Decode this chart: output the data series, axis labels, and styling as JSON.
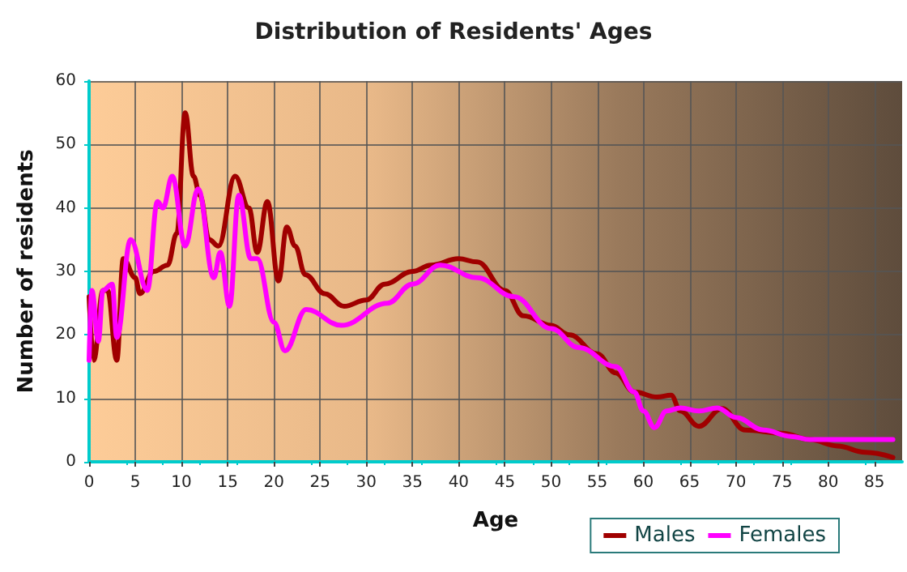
{
  "chart_data": {
    "type": "line",
    "title": "Distribution of Residents' Ages",
    "xlabel": "Age",
    "ylabel": "Number of residents",
    "xlim": [
      0,
      88
    ],
    "xticks": [
      0,
      5,
      10,
      15,
      20,
      25,
      30,
      35,
      40,
      45,
      50,
      55,
      60,
      65,
      70,
      75,
      80,
      85
    ],
    "ylim": [
      0,
      60
    ],
    "yticks": [
      0,
      10,
      20,
      30,
      40,
      50,
      60
    ],
    "grid": true,
    "legend": "bottom right",
    "marker": "none",
    "line_style": "solid",
    "series": [
      {
        "name": "Males",
        "color": "#a00000",
        "x": [
          0,
          0.5,
          1.5,
          2,
          3,
          3.7,
          5,
          5.5,
          7,
          8.5,
          9.5,
          10.4,
          11.3,
          12,
          13,
          14,
          15.8,
          17.3,
          18.2,
          19.3,
          20.5,
          21.4,
          22.3,
          23.4,
          25.5,
          27.6,
          30,
          32,
          35,
          37,
          40,
          42,
          45,
          47,
          50,
          52,
          55,
          57,
          59,
          61.5,
          63,
          64,
          66,
          68.5,
          71,
          75,
          78,
          81,
          84,
          87
        ],
        "values": [
          26,
          16,
          27,
          27,
          16,
          32,
          29,
          26.5,
          30,
          31,
          36,
          55,
          45,
          42,
          35,
          34,
          45,
          40,
          33,
          41,
          28.5,
          37,
          34,
          29.5,
          26.5,
          24.5,
          25.5,
          28,
          30,
          31,
          32,
          31.5,
          27,
          23,
          21.5,
          20,
          17,
          14,
          11,
          10.2,
          10.5,
          8,
          5.6,
          8.4,
          5,
          4.5,
          3.5,
          2.5,
          1.5,
          0.7
        ]
      },
      {
        "name": "Females",
        "color": "#ff00ff",
        "x": [
          0,
          0.3,
          1,
          1.5,
          2.5,
          3,
          4.5,
          6.3,
          7.4,
          8,
          9,
          10.4,
          11.8,
          13.5,
          14.2,
          15.2,
          16.2,
          17.5,
          18.2,
          20,
          21.2,
          23.5,
          27.3,
          32.3,
          35,
          38,
          42,
          46,
          50,
          53,
          57,
          59,
          60,
          61.2,
          62.5,
          64,
          66,
          68,
          70,
          73,
          76,
          78,
          87
        ],
        "values": [
          16,
          27,
          19,
          27,
          28,
          19.6,
          35,
          27,
          41,
          40,
          45,
          34,
          43,
          29,
          33,
          24.5,
          42,
          32,
          32,
          22,
          17.5,
          24,
          21.5,
          25,
          28,
          31,
          29,
          26,
          21,
          18,
          15,
          11,
          8,
          5.4,
          8,
          8.5,
          8,
          8.5,
          7,
          5,
          4,
          3.5,
          3.5
        ]
      }
    ]
  }
}
